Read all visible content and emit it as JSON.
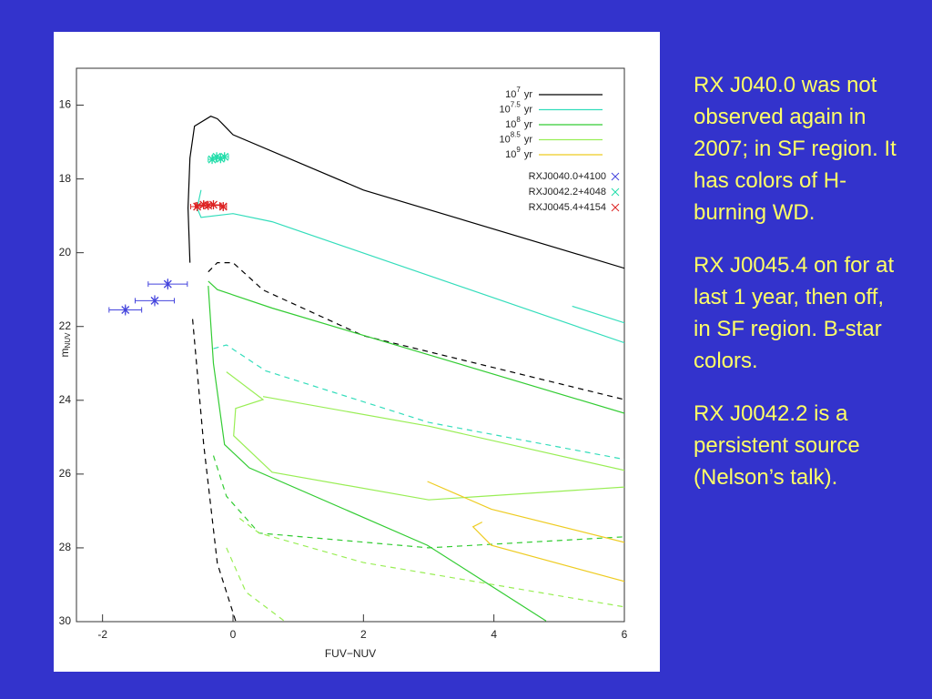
{
  "chart_data": {
    "type": "line",
    "x_label": "FUV−NUV",
    "y_label": "m",
    "y_label_sub": "NUV",
    "xlim": [
      -2.4,
      6
    ],
    "ylim": [
      30,
      15
    ],
    "xticks": [
      -2,
      0,
      2,
      4,
      6
    ],
    "yticks": [
      16,
      18,
      20,
      22,
      24,
      26,
      28,
      30
    ],
    "series": [
      {
        "name": "10",
        "exponent": "7",
        "unit": "yr",
        "color": "#000000",
        "curves": [
          {
            "dashed": false,
            "x": [
              -0.66,
              -0.69,
              -0.66,
              -0.59,
              -0.34,
              -0.24,
              -0.17,
              0,
              2,
              6
            ],
            "y": [
              20.27,
              18.79,
              17.43,
              16.57,
              16.3,
              16.37,
              16.49,
              16.8,
              18.3,
              20.42
            ]
          },
          {
            "dashed": true,
            "x": [
              -0.38,
              -0.24,
              0,
              0.46,
              2,
              6
            ],
            "y": [
              20.52,
              20.27,
              20.27,
              21.01,
              22.25,
              23.98
            ]
          },
          {
            "dashed": true,
            "x": [
              -0.62,
              -0.45,
              -0.24,
              0.04
            ],
            "y": [
              21.8,
              25.2,
              28.42,
              29.98
            ]
          }
        ]
      },
      {
        "name": "10",
        "exponent": "7.5",
        "unit": "yr",
        "color": "#33ddbb",
        "curves": [
          {
            "dashed": false,
            "x": [
              -0.49,
              -0.55,
              -0.49,
              0,
              0.6,
              6
            ],
            "y": [
              18.3,
              18.79,
              19.04,
              18.94,
              19.16,
              22.44
            ]
          },
          {
            "dashed": false,
            "x": [
              5.2,
              6
            ],
            "y": [
              21.45,
              21.9
            ]
          },
          {
            "dashed": true,
            "x": [
              -0.3,
              -0.1,
              0.5,
              3,
              6
            ],
            "y": [
              22.6,
              22.5,
              23.2,
              24.6,
              25.6
            ]
          }
        ]
      },
      {
        "name": "10",
        "exponent": "8",
        "unit": "yr",
        "color": "#33cc33",
        "curves": [
          {
            "dashed": false,
            "x": [
              -0.38,
              -0.24,
              0.6,
              6
            ],
            "y": [
              20.77,
              21.0,
              21.5,
              24.35
            ]
          },
          {
            "dashed": false,
            "x": [
              -0.38,
              -0.3,
              -0.13,
              0.25,
              2.98,
              4.8
            ],
            "y": [
              20.9,
              23.0,
              25.2,
              25.83,
              27.93,
              29.98
            ]
          },
          {
            "dashed": true,
            "x": [
              -0.3,
              -0.1,
              0.4,
              3,
              6
            ],
            "y": [
              25.5,
              26.6,
              27.6,
              28.0,
              27.7
            ]
          }
        ]
      },
      {
        "name": "10",
        "exponent": "8.5",
        "unit": "yr",
        "color": "#99ee55",
        "curves": [
          {
            "dashed": false,
            "x": [
              -0.1,
              0.46,
              0.04,
              0.01,
              0.6,
              3,
              6
            ],
            "y": [
              23.23,
              23.98,
              24.22,
              24.96,
              25.95,
              26.7,
              26.35
            ]
          },
          {
            "dashed": false,
            "x": [
              0.46,
              3,
              6
            ],
            "y": [
              23.9,
              24.7,
              25.9
            ]
          },
          {
            "dashed": true,
            "x": [
              0.1,
              0.4,
              2,
              6
            ],
            "y": [
              27.2,
              27.6,
              28.4,
              29.6
            ]
          },
          {
            "dashed": true,
            "x": [
              -0.1,
              0.2,
              0.8
            ],
            "y": [
              28.0,
              29.2,
              30.0
            ]
          }
        ]
      },
      {
        "name": "10",
        "exponent": "9",
        "unit": "yr",
        "color": "#eecc22",
        "curves": [
          {
            "dashed": false,
            "x": [
              2.98,
              3.96,
              6
            ],
            "y": [
              26.2,
              26.95,
              27.85
            ]
          },
          {
            "dashed": false,
            "x": [
              3.82,
              3.68,
              3.96,
              6
            ],
            "y": [
              27.3,
              27.43,
              27.93,
              28.91
            ]
          }
        ]
      }
    ],
    "sources": [
      {
        "name": "RXJ0040.0+4100",
        "color": "#4444dd",
        "x": [
          -1.65,
          -1.2,
          -1.0
        ],
        "y": [
          21.55,
          21.3,
          20.85
        ],
        "xerr": [
          0.25,
          0.3,
          0.3
        ],
        "yerr": [
          0.15,
          0.15,
          0.15
        ]
      },
      {
        "name": "RXJ0042.2+4048",
        "color": "#22ddaa",
        "x": [
          -0.32,
          -0.25,
          -0.19,
          -0.13
        ],
        "y": [
          17.47,
          17.4,
          17.45,
          17.4
        ],
        "xerr": [
          0.06,
          0.06,
          0.06,
          0.06
        ],
        "yerr": [
          0.08,
          0.08,
          0.08,
          0.08
        ]
      },
      {
        "name": "RXJ0045.4+4154",
        "color": "#dd2222",
        "x": [
          -0.55,
          -0.45,
          -0.38,
          -0.3,
          -0.15
        ],
        "y": [
          18.75,
          18.7,
          18.72,
          18.7,
          18.75
        ],
        "xerr": [
          0.1,
          0.12,
          0.2,
          0.1,
          0.05
        ],
        "yerr": [
          0.1,
          0.1,
          0.1,
          0.1,
          0.1
        ]
      }
    ]
  },
  "notes": [
    "RX J040.0 was not observed again in 2007; in SF region. It has colors of H-burning WD.",
    "RX J0045.4 on for at last 1 year, then off, in SF region. B-star colors.",
    "RX J0042.2 is a persistent source (Nelson’s talk)."
  ]
}
